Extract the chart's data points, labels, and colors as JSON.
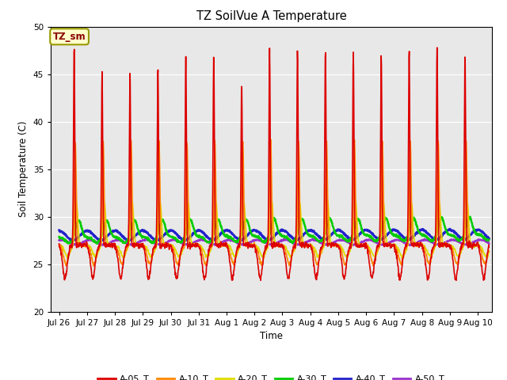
{
  "title": "TZ SoilVue A Temperature",
  "ylabel": "Soil Temperature (C)",
  "xlabel": "Time",
  "ylim": [
    20,
    50
  ],
  "yticks": [
    20,
    25,
    30,
    35,
    40,
    45,
    50
  ],
  "annotation_label": "TZ_sm",
  "annotation_color": "#880000",
  "annotation_bg": "#ffffcc",
  "annotation_border": "#999900",
  "fig_bg": "#ffffff",
  "plot_bg": "#e8e8e8",
  "grid_color": "#ffffff",
  "series_colors": {
    "A-05_T": "#dd0000",
    "A-10_T": "#ff8800",
    "A-20_T": "#dddd00",
    "A-30_T": "#00cc00",
    "A-40_T": "#2222cc",
    "A-50_T": "#9933cc"
  },
  "series_linewidths": {
    "A-05_T": 1.2,
    "A-10_T": 1.2,
    "A-20_T": 1.2,
    "A-30_T": 1.8,
    "A-40_T": 2.0,
    "A-50_T": 1.8
  },
  "xtick_labels": [
    "Jul 26",
    "Jul 27",
    "Jul 28",
    "Jul 29",
    "Jul 30",
    "Jul 31",
    "Aug 1",
    "Aug 2",
    "Aug 3",
    "Aug 4",
    "Aug 5",
    "Aug 6",
    "Aug 7",
    "Aug 8",
    "Aug 9",
    "Aug 10"
  ],
  "xtick_positions": [
    0,
    1,
    2,
    3,
    4,
    5,
    6,
    7,
    8,
    9,
    10,
    11,
    12,
    13,
    14,
    15
  ]
}
